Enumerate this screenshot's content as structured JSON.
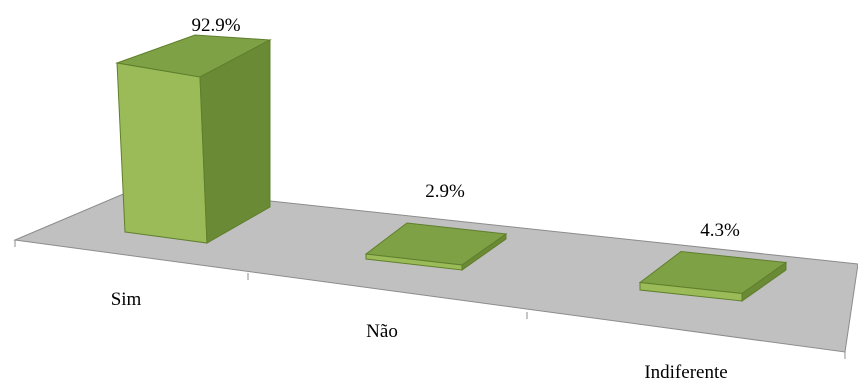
{
  "chart_data": {
    "type": "bar",
    "style": "3d-perspective",
    "categories": [
      "Sim",
      "Não",
      "Indiferente"
    ],
    "values": [
      92.9,
      2.9,
      4.3
    ],
    "data_labels": [
      "92.9%",
      "2.9%",
      "4.3%"
    ],
    "unit": "%",
    "ylim": [
      0,
      100
    ],
    "grid": false,
    "legend": "none",
    "colors": {
      "bar_front": "#9bbb59",
      "bar_side": "#6a8a36",
      "bar_top": "#7fa146",
      "bar_edge": "#5f7f2c",
      "floor": "#c0c0c0",
      "floor_edge": "#8c8c8c"
    }
  }
}
